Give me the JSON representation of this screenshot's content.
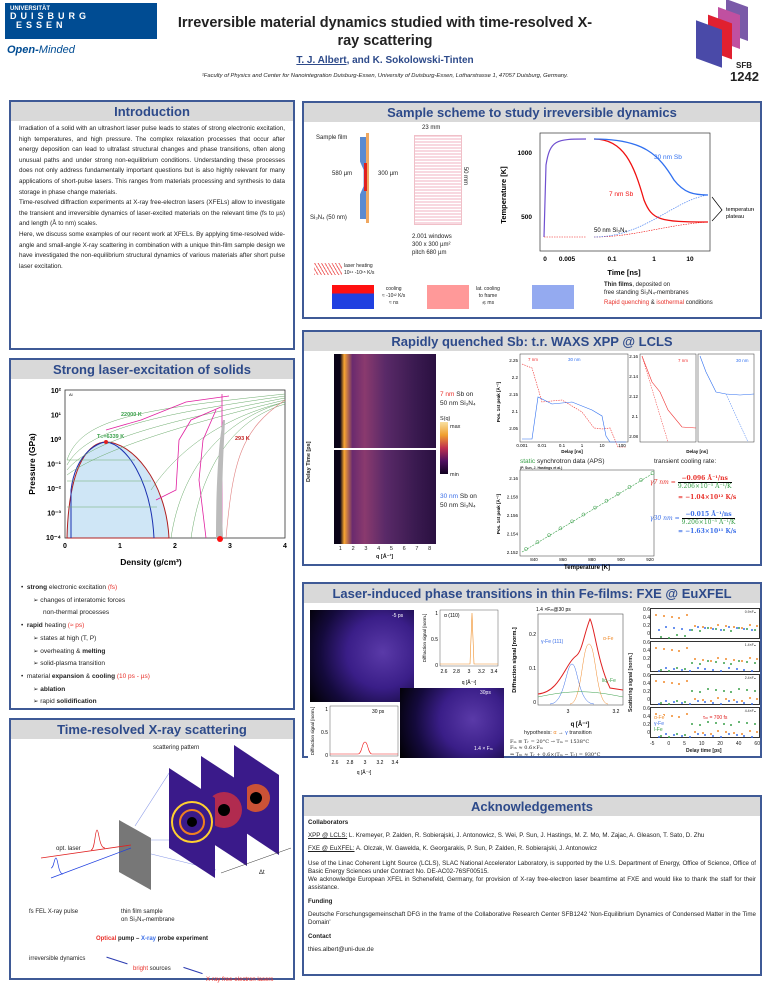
{
  "header": {
    "logo_line1": "UNIVERSITÄT",
    "logo_line2": "DUISBURG",
    "logo_line3": "ESSEN",
    "logo_tagline_a": "Open-",
    "logo_tagline_b": "Minded",
    "title": "Irreversible material dynamics studied with time-resolved X-ray scattering",
    "author1": "T. J. Albert",
    "authors_rest": ", and K. Sokolowski-Tinten",
    "affiliation": "¹Faculty of Physics and Center for Nanointegration Duisburg-Essen, University of Duisburg-Essen, Lotharstrasse 1, 47057 Duisburg, Germany.",
    "sfb_logo": "SFB 1242",
    "sfb_a": "SFB",
    "sfb_b": "1242"
  },
  "intro": {
    "title": "Introduction",
    "p1": "Irradiation of a solid with an ultrashort laser pulse leads to states of strong electronic excitation, high temperatures, and high pressure. The complex relaxation processes that occur after energy deposition can lead to ultrafast structural changes and phase transitions, often along unusual paths and under strong non-equilibrium conditions. Understanding these processes does not only address fundamentally important questions but is also highly relevant for many applications of short-pulse lasers. This ranges from materials processing and synthesis to data storage in phase change materials.",
    "p2": "Time-resolved diffraction experiments at X-ray free-electron lasers (XFELs) allow to investigate the transient and irreversible dynamics of laser-excited materials on the relevant time (fs to µs) and length (Å to nm) scales.",
    "p3": "Here, we discuss some examples of our recent work at XFELs. By applying time-resolved wide-angle and small-angle X-ray scattering in combination with a unique thin-film sample design we have investigated the non-equilibrium structural dynamics of various materials after short pulse laser excitation."
  },
  "strong": {
    "title": "Strong laser-excitation of solids",
    "plot": {
      "ylabel": "Pressure (GPa)",
      "xlabel": "Density (g/cm³)",
      "material": "Al",
      "yticks": [
        "10²",
        "10¹",
        "10⁰",
        "10⁻¹",
        "10⁻²",
        "10⁻³",
        "10⁻⁴"
      ],
      "xticks": [
        "0",
        "1",
        "2",
        "3",
        "4"
      ],
      "label_hot": "22000 K",
      "label_tc": "T",
      "label_tc_sub": "C",
      "label_tc_val": "=6339 K",
      "label_cold": "293 K"
    },
    "bullets": [
      {
        "b": "strong",
        "t": " electronic excitation ",
        "r": "(fs)"
      },
      {
        "sub": "changes of interatomic forces"
      },
      {
        "sub2": "non-thermal processes"
      },
      {
        "b": "rapid",
        "t": " heating ",
        "r": "(≈ ps)"
      },
      {
        "sub": "states at high (T, P)"
      },
      {
        "sub": "overheating & ",
        "sb": "melting"
      },
      {
        "sub": "solid-plasma transition"
      },
      {
        "t0": "material ",
        "b": "expansion",
        "t": " & ",
        "b2": "cooling",
        "r": " (10 ps - µs)"
      },
      {
        "sb": "ablation"
      },
      {
        "sub": "rapid ",
        "sb": "solidification"
      }
    ]
  },
  "trxs": {
    "title": "Time-resolved X-ray scattering",
    "scattering_pattern": "scattering pattern",
    "opt_laser": "opt. laser",
    "fel_pulse": "fs FEL X-ray pulse",
    "sample1": "thin film sample",
    "sample2": "on Si₃N₄-membrane",
    "delta_t": "Δt",
    "exp_optical": "Optical",
    "exp_pump": " pump – ",
    "exp_xray": "X-ray",
    "exp_probe": " probe experiment",
    "irrev": "irreversible dynamics",
    "bright": "bright",
    "sources": " sources",
    "xfel": "X-ray free-electron lasers"
  },
  "scheme": {
    "title": "Sample scheme to study irreversible dynamics",
    "sample_film": "Sample film",
    "d580": "580 µm",
    "d300": "300 µm",
    "si3n4": "Si₃N₄ (50 nm)",
    "w23": "23 mm",
    "h50": "50 mm",
    "windows1": "2.001 windows",
    "windows2": "300 x 300 µm²",
    "windows3": "pitch 680 µm",
    "laser1": "laser heating",
    "laser2": "10¹⁴ -10¹⁵ K/s",
    "cool1": "cooling",
    "cool2": "≈ -10¹² K/s",
    "cool3": "≈ ns",
    "lat1": "lat. cooling",
    "lat2": "to frame",
    "lat3": "≲ ms",
    "plot": {
      "ylabel": "Temperature [K]",
      "xlabel": "Time [ns]",
      "yticks": [
        "1000",
        "500"
      ],
      "xticks": [
        "0",
        "0.005",
        "0.1",
        "1",
        "10"
      ],
      "l30": "30 nm Sb",
      "l7": "7 nm Sb",
      "lsi": "50 nm Si₃N₄",
      "plateau1": "temperature",
      "plateau2": "plateau"
    },
    "thin_b": "Thin films",
    "thin_t": ", deposited on",
    "free": "free standing Si₃N₄-membranes",
    "rq": "Rapid quenching",
    "amp": " & ",
    "iso": "isothermal",
    "cond": " conditions"
  },
  "waxs": {
    "title": "Rapidly quenched Sb: t.r. WAXS XPP @ LCLS",
    "ylabel": "Delay Time [ps]",
    "xlabel": "q [Å⁻¹]",
    "qticks": [
      "1",
      "2",
      "3",
      "4",
      "5",
      "6",
      "7",
      "8"
    ],
    "cbar_title": "S(q)",
    "cbar_max": "max",
    "cbar_min": "min",
    "s7a": "7 nm",
    "s7b": " Sb on",
    "s7c": "50 nm Si₃N₄",
    "s30a": "30 nm",
    "s30b": " Sb on",
    "s30c": "50 nm Si₃N₄",
    "p1": {
      "ylabel": "Pos. 1st peak [Å⁻¹]",
      "xlabel": "Delay [ns]",
      "yticks": [
        "2.25",
        "2.2",
        "2.15",
        "2.1",
        "2.05"
      ],
      "xticks": [
        "0.001",
        "0.01",
        "0.1",
        "1",
        "10",
        "100"
      ],
      "l7": "7 nm",
      "l30": "30 nm"
    },
    "p2": {
      "xlabel": "Delay [ns]",
      "yticks": [
        "2.16",
        "2.14",
        "2.12",
        "2.1",
        "2.08"
      ],
      "l7": "7 nm",
      "l30": "30 nm"
    },
    "static_g": "static",
    "static_t": " synchrotron data (APS)",
    "static_ref": "(P. Sun, J. Hastings et al.)",
    "p3": {
      "ylabel": "Pos. 1st peak [Å⁻¹]",
      "xlabel": "Temperature [K]",
      "yticks": [
        "2.16",
        "2.158",
        "2.156",
        "2.154",
        "2.152"
      ],
      "xticks": [
        "840",
        "860",
        "880",
        "900",
        "920"
      ]
    },
    "rate_title": "transient cooling rate:",
    "g7": "γ7 nm =",
    "g7_num": "−0.096 Å⁻¹/ns",
    "den": "9.206×10⁻⁵ Å⁻¹/K",
    "g7_res": "= −1.04×10¹² K/s",
    "g30": "γ30 nm =",
    "g30_num": "−0.015 Å⁻¹/ns",
    "g30_res": "= −1.63×10¹¹ K/s"
  },
  "fe": {
    "title": "Laser-induced phase transitions in thin Fe-films: FXE @ EuXFEL",
    "det1": "-5 ps",
    "det2": "30ps",
    "det2b": "1.4 × Fₘ",
    "inset1": {
      "ylabel": "Diffraction signal [norm.]",
      "xlabel": "q [Å⁻¹]",
      "label": "α (110)",
      "yticks": [
        "1",
        "0.5",
        "0"
      ],
      "xticks": [
        "2.6",
        "2.8",
        "3",
        "3.2",
        "3.4"
      ]
    },
    "inset2": {
      "ylabel": "Diffraction signal [norm.]",
      "xlabel": "q [Å⁻¹]",
      "label": "30 ps",
      "yticks": [
        "1",
        "0.5",
        "0"
      ],
      "xticks": [
        "2.6",
        "2.8",
        "3",
        "3.2",
        "3.4"
      ]
    },
    "fit": {
      "title": "1.4 ×Fₘ@30 ps",
      "ylabel": "Diffraction signal [norm.]",
      "xlabel": "q [Å⁻¹]",
      "gamma": "γ-Fe (111)",
      "alpha": "α-Fe",
      "liq": "liq.-Fe",
      "yticks": [
        "0.2",
        "0.1",
        "0"
      ],
      "xticks": [
        "3",
        "3.2"
      ]
    },
    "hyp_a": "hypothesis: ",
    "hyp_alpha": "α",
    "hyp_arrow": " → ",
    "hyp_gamma": "γ",
    "hyp_b": " transition",
    "eq1": "Fₘ ≡ Tᵣ = 20°C → Tₘ = 1538°C",
    "eq2": "Fₜₕ ≈ 0.6×Fₘ",
    "eq3": "⇒ Tₜₕ ≈ Tᵣ + 0.6×(Tₘ − Tᵣ) = 930°C",
    "scat": {
      "ylabel": "Scattering signal [norm.]",
      "xlabel": "Delay time [ps]",
      "panels": [
        "0.9×Fₘ",
        "1.4×Fₘ",
        "2.4×Fₘ",
        "4.4×Fₘ"
      ],
      "yticks": [
        "0.6",
        "0.4",
        "0.2",
        "0"
      ],
      "xticks": [
        "-5",
        "0",
        "5",
        "10",
        "20",
        "40",
        "60"
      ],
      "la": "α-Fe",
      "lg": "γ-Fe",
      "ll": "l-Fe",
      "tau": "τₘ = 700 fs"
    }
  },
  "ack": {
    "title": "Acknowledgements",
    "collab": "Collaborators",
    "xpp_k": "XPP @ LCLS:",
    "xpp_v": " L. Kremeyer, P. Zalden, R. Sobierajski, J. Antonowicz, S. Wei, P. Sun, J. Hastings, M. Z. Mo, M. Zajac, A. Gleason, T. Sato, D. Zhu",
    "fxe_k": "FXE @ EuXFEL:",
    "fxe_v": " A. Olczak, W. Gawelda, K. Georgarakis, P. Sun, P. Zalden, R. Sobierajski, J. Antonowicz",
    "lcls": "Use of the Linac Coherent Light Source (LCLS), SLAC National Accelerator Laboratory, is supported by the U.S. Department of Energy, Office of Science, Office of Basic Energy Sciences under Contract No. DE-AC02-76SF00515.",
    "euxfel": "We acknowledge European XFEL in Schenefeld, Germany, for provision of X-ray free-electron laser beamtime at FXE and would like to thank the staff for their assistance.",
    "funding": "Funding",
    "dfg": "Deutsche Forschungsgemeinschaft DFG in the frame of the Collaborative Research Center SFB1242 'Non-Equilibrium Dynamics of Condensed Matter in the Time Domain'",
    "contact": "Contact",
    "email": "thies.albert@uni-due.de"
  },
  "colors": {
    "frame": "#3f5a96",
    "header_bg": "#d9d9d9",
    "title_blue": "#2d4a8a",
    "red": "#e8302a",
    "blue": "#3a6ee8",
    "green": "#3aa04a",
    "orange": "#f08a2a"
  }
}
